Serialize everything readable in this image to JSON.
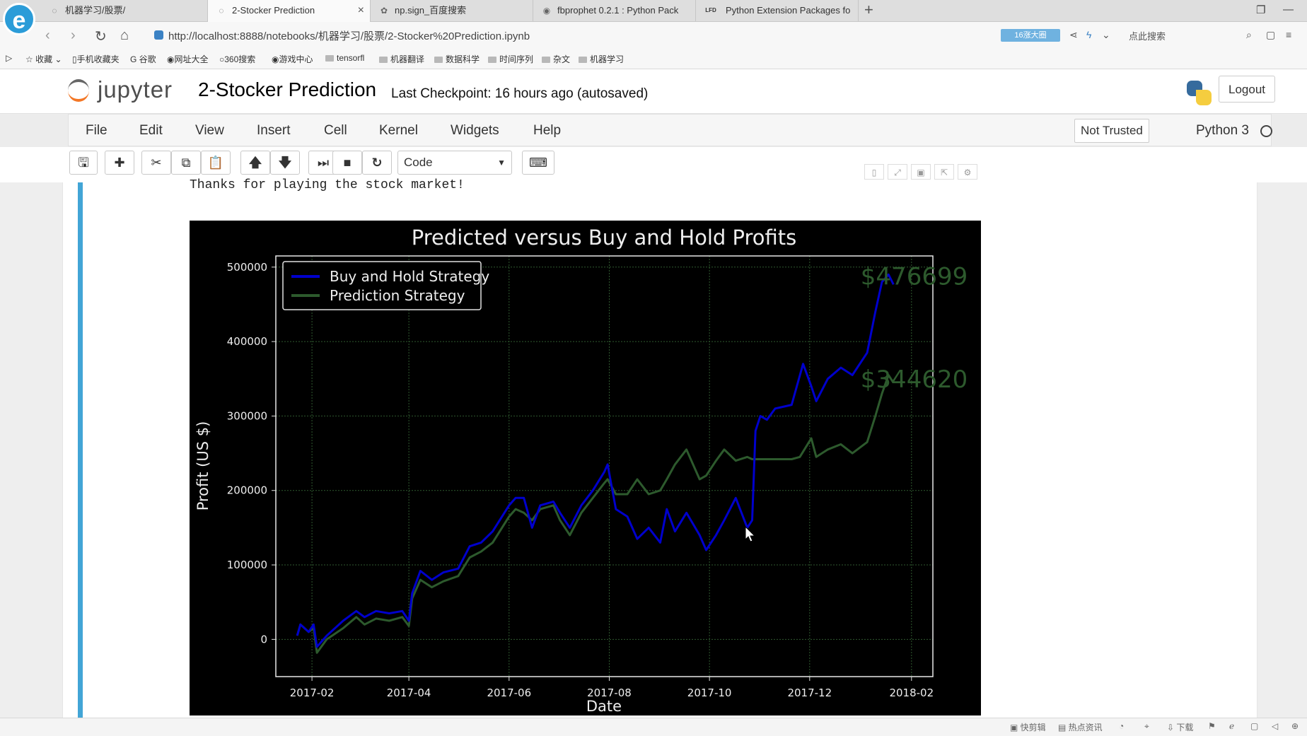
{
  "browser": {
    "tabs": [
      {
        "label": "机器学习/股票/",
        "icon": "loading-icon"
      },
      {
        "label": "2-Stocker Prediction",
        "icon": "loading-icon",
        "active": true
      },
      {
        "label": "np.sign_百度搜索",
        "icon": "paw-icon"
      },
      {
        "label": "fbprophet 0.2.1 : Python Pack",
        "icon": "package-icon"
      },
      {
        "label": "Python Extension Packages fo",
        "icon": "lfd-icon",
        "prefix": "LFD"
      }
    ],
    "url": "http://localhost:8888/notebooks/机器学习/股票/2-Stocker%20Prediction.ipynb",
    "badge": "16涨大圈",
    "search_placeholder": "点此搜索",
    "bookmarks": [
      "收藏",
      "手机收藏夹",
      "谷歌",
      "网址大全",
      "360搜索",
      "游戏中心",
      "tensorfl",
      "机器翻译",
      "数据科学",
      "时间序列",
      "杂文",
      "机器学习"
    ]
  },
  "jupyter": {
    "logo_text": "jupyter",
    "title": "2-Stocker Prediction",
    "checkpoint": "Last Checkpoint: 16 hours ago (autosaved)",
    "logout_label": "Logout",
    "menu": [
      "File",
      "Edit",
      "View",
      "Insert",
      "Cell",
      "Kernel",
      "Widgets",
      "Help"
    ],
    "trusted_label": "Not Trusted",
    "kernel_label": "Python 3",
    "cell_type": "Code"
  },
  "output": {
    "text": "Thanks for playing the stock market!"
  },
  "chart_data": {
    "type": "line",
    "title": "Predicted versus Buy and Hold Profits",
    "xlabel": "Date",
    "ylabel": "Profit  (US $)",
    "x_ticks": [
      "2017-02",
      "2017-04",
      "2017-06",
      "2017-08",
      "2017-10",
      "2017-12",
      "2018-02"
    ],
    "y_ticks": [
      "0",
      "100000",
      "200000",
      "300000",
      "400000",
      "500000"
    ],
    "ylim": [
      -50000,
      515000
    ],
    "xlim": [
      "2017-01-10",
      "2018-02-14"
    ],
    "grid": true,
    "legend_position": "top-left",
    "annotations": [
      {
        "text": "$476699",
        "x": "2018-01-01",
        "y": 488000,
        "color": "#2d5a2d"
      },
      {
        "text": "$344620",
        "x": "2018-01-01",
        "y": 350000,
        "color": "#2d5a2d"
      }
    ],
    "series": [
      {
        "name": "Buy and Hold Strategy",
        "color": "#0000cc",
        "points": [
          [
            "2017-01-23",
            5000
          ],
          [
            "2017-01-25",
            20000
          ],
          [
            "2017-01-30",
            10000
          ],
          [
            "2017-02-02",
            20000
          ],
          [
            "2017-02-04",
            -10000
          ],
          [
            "2017-02-10",
            5000
          ],
          [
            "2017-02-20",
            25000
          ],
          [
            "2017-02-28",
            38000
          ],
          [
            "2017-03-05",
            30000
          ],
          [
            "2017-03-12",
            38000
          ],
          [
            "2017-03-20",
            35000
          ],
          [
            "2017-03-28",
            38000
          ],
          [
            "2017-04-01",
            25000
          ],
          [
            "2017-04-03",
            62000
          ],
          [
            "2017-04-08",
            92000
          ],
          [
            "2017-04-15",
            80000
          ],
          [
            "2017-04-22",
            90000
          ],
          [
            "2017-05-01",
            95000
          ],
          [
            "2017-05-08",
            125000
          ],
          [
            "2017-05-15",
            130000
          ],
          [
            "2017-05-22",
            145000
          ],
          [
            "2017-06-01",
            180000
          ],
          [
            "2017-06-05",
            190000
          ],
          [
            "2017-06-10",
            190000
          ],
          [
            "2017-06-15",
            150000
          ],
          [
            "2017-06-20",
            180000
          ],
          [
            "2017-06-28",
            185000
          ],
          [
            "2017-07-02",
            170000
          ],
          [
            "2017-07-08",
            150000
          ],
          [
            "2017-07-15",
            180000
          ],
          [
            "2017-07-22",
            200000
          ],
          [
            "2017-07-29",
            225000
          ],
          [
            "2017-07-31",
            235000
          ],
          [
            "2017-08-05",
            175000
          ],
          [
            "2017-08-12",
            165000
          ],
          [
            "2017-08-18",
            135000
          ],
          [
            "2017-08-25",
            150000
          ],
          [
            "2017-09-01",
            130000
          ],
          [
            "2017-09-05",
            175000
          ],
          [
            "2017-09-10",
            145000
          ],
          [
            "2017-09-17",
            170000
          ],
          [
            "2017-09-25",
            140000
          ],
          [
            "2017-09-29",
            120000
          ],
          [
            "2017-10-05",
            140000
          ],
          [
            "2017-10-10",
            160000
          ],
          [
            "2017-10-17",
            190000
          ],
          [
            "2017-10-24",
            150000
          ],
          [
            "2017-10-27",
            160000
          ],
          [
            "2017-10-29",
            280000
          ],
          [
            "2017-11-01",
            300000
          ],
          [
            "2017-11-05",
            295000
          ],
          [
            "2017-11-10",
            310000
          ],
          [
            "2017-11-20",
            315000
          ],
          [
            "2017-11-27",
            370000
          ],
          [
            "2017-12-02",
            340000
          ],
          [
            "2017-12-05",
            320000
          ],
          [
            "2017-12-12",
            350000
          ],
          [
            "2017-12-20",
            365000
          ],
          [
            "2017-12-27",
            355000
          ],
          [
            "2018-01-05",
            385000
          ],
          [
            "2018-01-10",
            440000
          ],
          [
            "2018-01-14",
            480000
          ],
          [
            "2018-01-18",
            490000
          ],
          [
            "2018-01-21",
            476699
          ]
        ]
      },
      {
        "name": "Prediction Strategy",
        "color": "#2d5a2d",
        "points": [
          [
            "2017-01-23",
            5000
          ],
          [
            "2017-01-25",
            20000
          ],
          [
            "2017-01-30",
            10000
          ],
          [
            "2017-02-02",
            15000
          ],
          [
            "2017-02-04",
            -18000
          ],
          [
            "2017-02-10",
            0
          ],
          [
            "2017-02-20",
            15000
          ],
          [
            "2017-02-28",
            30000
          ],
          [
            "2017-03-05",
            20000
          ],
          [
            "2017-03-12",
            28000
          ],
          [
            "2017-03-20",
            25000
          ],
          [
            "2017-03-28",
            30000
          ],
          [
            "2017-04-01",
            18000
          ],
          [
            "2017-04-03",
            55000
          ],
          [
            "2017-04-08",
            80000
          ],
          [
            "2017-04-15",
            70000
          ],
          [
            "2017-04-22",
            78000
          ],
          [
            "2017-05-01",
            85000
          ],
          [
            "2017-05-08",
            110000
          ],
          [
            "2017-05-15",
            118000
          ],
          [
            "2017-05-22",
            130000
          ],
          [
            "2017-06-01",
            165000
          ],
          [
            "2017-06-05",
            175000
          ],
          [
            "2017-06-10",
            170000
          ],
          [
            "2017-06-15",
            160000
          ],
          [
            "2017-06-20",
            175000
          ],
          [
            "2017-06-28",
            180000
          ],
          [
            "2017-07-02",
            160000
          ],
          [
            "2017-07-08",
            140000
          ],
          [
            "2017-07-15",
            170000
          ],
          [
            "2017-07-22",
            190000
          ],
          [
            "2017-07-29",
            210000
          ],
          [
            "2017-07-31",
            215000
          ],
          [
            "2017-08-05",
            195000
          ],
          [
            "2017-08-12",
            195000
          ],
          [
            "2017-08-18",
            215000
          ],
          [
            "2017-08-25",
            195000
          ],
          [
            "2017-09-01",
            200000
          ],
          [
            "2017-09-05",
            215000
          ],
          [
            "2017-09-10",
            235000
          ],
          [
            "2017-09-17",
            255000
          ],
          [
            "2017-09-25",
            215000
          ],
          [
            "2017-09-29",
            220000
          ],
          [
            "2017-10-05",
            240000
          ],
          [
            "2017-10-10",
            255000
          ],
          [
            "2017-10-17",
            240000
          ],
          [
            "2017-10-24",
            245000
          ],
          [
            "2017-10-27",
            242000
          ],
          [
            "2017-10-29",
            242000
          ],
          [
            "2017-11-05",
            242000
          ],
          [
            "2017-11-20",
            242000
          ],
          [
            "2017-11-25",
            245000
          ],
          [
            "2017-12-02",
            270000
          ],
          [
            "2017-12-05",
            245000
          ],
          [
            "2017-12-12",
            255000
          ],
          [
            "2017-12-20",
            262000
          ],
          [
            "2017-12-27",
            250000
          ],
          [
            "2018-01-05",
            265000
          ],
          [
            "2018-01-10",
            300000
          ],
          [
            "2018-01-14",
            330000
          ],
          [
            "2018-01-18",
            355000
          ],
          [
            "2018-01-21",
            344620
          ]
        ]
      }
    ]
  },
  "statusbar": [
    "快剪辑",
    "热点资讯",
    "下载"
  ]
}
